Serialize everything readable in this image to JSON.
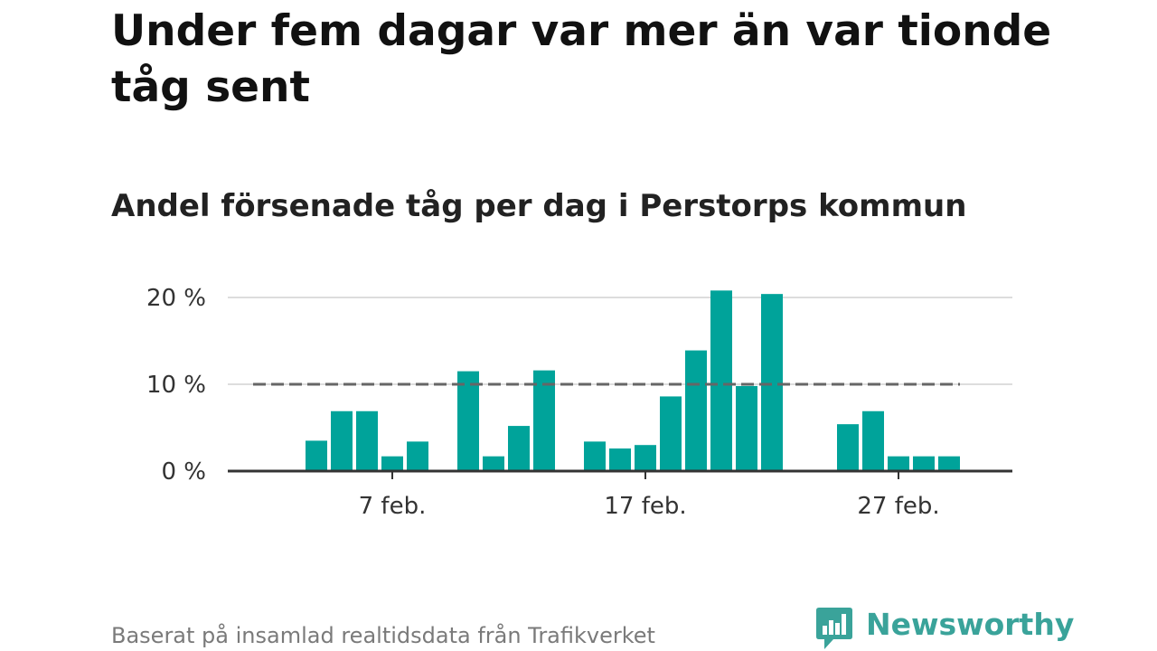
{
  "title": "Under fem dagar var mer än var tionde tåg sent",
  "subtitle": "Andel försenade tåg per dag i Perstorps kommun",
  "source": "Baserat på insamlad realtidsdata från Trafikverket",
  "brand": {
    "name": "Newsworthy",
    "color": "#3aa39a"
  },
  "colors": {
    "bar": "#00a39a",
    "reference_line": "#666666",
    "grid": "#dddddd",
    "baseline": "#333333"
  },
  "chart_data": {
    "type": "bar",
    "x_unit": "day of February",
    "x": [
      1,
      2,
      3,
      4,
      5,
      6,
      7,
      8,
      9,
      10,
      11,
      12,
      13,
      14,
      15,
      16,
      17,
      18,
      19,
      20,
      21,
      22,
      23,
      24,
      25,
      26,
      27,
      28,
      29
    ],
    "values": [
      null,
      null,
      null,
      3.5,
      6.9,
      6.9,
      1.7,
      3.4,
      null,
      11.5,
      1.7,
      5.2,
      11.6,
      null,
      3.4,
      2.6,
      3.0,
      8.6,
      13.9,
      20.8,
      9.8,
      20.4,
      null,
      null,
      5.4,
      6.9,
      1.7,
      1.7,
      1.7
    ],
    "reference_line": {
      "value": 10,
      "style": "dashed"
    },
    "yticks": [
      {
        "value": 0,
        "label": "0 %"
      },
      {
        "value": 10,
        "label": "10 %"
      },
      {
        "value": 20,
        "label": "20 %"
      }
    ],
    "xticks": [
      {
        "value": 7,
        "label": "7 feb."
      },
      {
        "value": 17,
        "label": "17 feb."
      },
      {
        "value": 27,
        "label": "27 feb."
      }
    ],
    "ylim": [
      0,
      20
    ],
    "grid": true,
    "legend": "none"
  }
}
